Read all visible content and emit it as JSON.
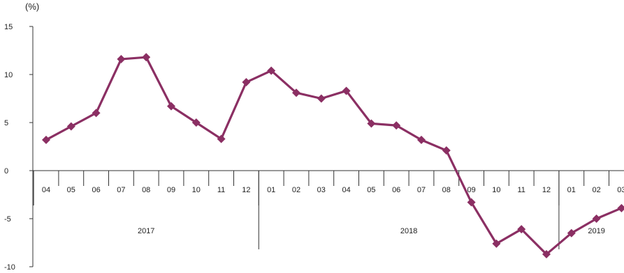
{
  "chart_data": {
    "type": "line",
    "unit_label": "(%)",
    "y_ticks": [
      "15",
      "10",
      "5",
      "0",
      "-5",
      "-10"
    ],
    "ylim": [
      -10,
      15
    ],
    "grid": false,
    "x_tick_labels": [
      "04",
      "05",
      "06",
      "07",
      "08",
      "09",
      "10",
      "11",
      "12",
      "01",
      "02",
      "03",
      "04",
      "05",
      "06",
      "07",
      "08",
      "09",
      "10",
      "11",
      "12",
      "01",
      "02",
      "03"
    ],
    "year_labels": [
      "2017",
      "2018",
      "2019"
    ],
    "series": [
      {
        "color": "#8b2f63",
        "values": [
          3.2,
          4.6,
          6.0,
          11.6,
          11.8,
          6.7,
          5.0,
          3.3,
          9.2,
          10.4,
          8.1,
          7.5,
          8.3,
          4.9,
          4.7,
          3.2,
          2.1,
          -3.3,
          -7.6,
          -6.1,
          -8.7,
          -6.5,
          -5.0,
          -3.9
        ]
      }
    ]
  }
}
